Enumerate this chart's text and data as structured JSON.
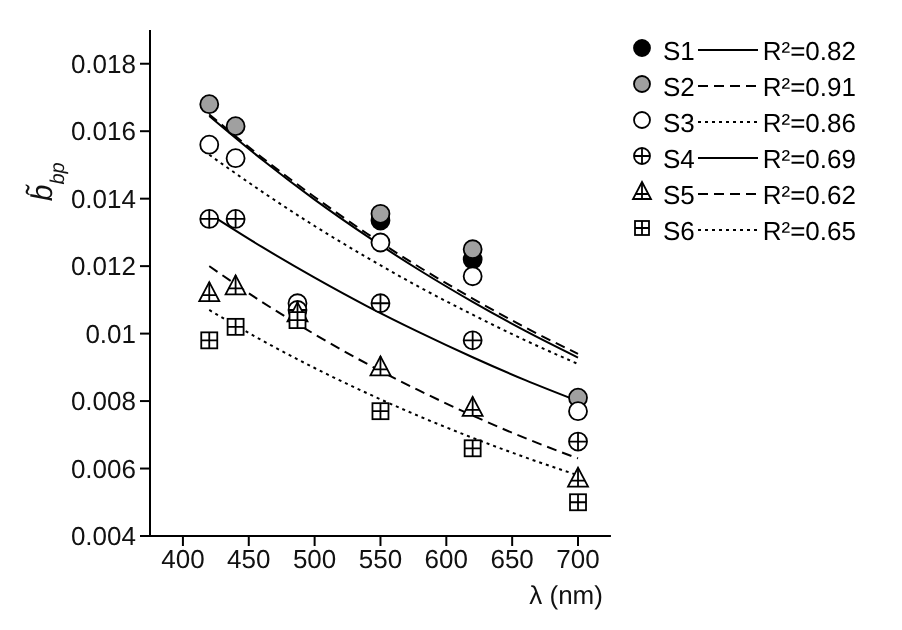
{
  "chart_data": {
    "type": "scatter",
    "xlabel": "λ (nm)",
    "ylabel": "b̃$_{bp}$",
    "xlim": [
      375,
      725
    ],
    "xticks": [
      400,
      450,
      500,
      550,
      600,
      650,
      700
    ],
    "ylim": [
      0.004,
      0.019
    ],
    "yticks": [
      0.004,
      0.006,
      0.008,
      0.01,
      0.012,
      0.014,
      0.016,
      0.018
    ],
    "grid": false,
    "legend": "top right",
    "x": [
      420,
      440,
      487,
      550,
      620,
      700
    ],
    "series": [
      {
        "name": "S1",
        "color": "#000000",
        "marker": "circle",
        "values": [
          null,
          null,
          null,
          0.01335,
          0.0122,
          null
        ]
      },
      {
        "name": "S2",
        "color": "#a0a0a0",
        "marker": "circle",
        "values": [
          0.0168,
          0.01615,
          null,
          0.01355,
          0.0125,
          0.0081
        ]
      },
      {
        "name": "S3",
        "color": "#ffffff",
        "marker": "circle",
        "values": [
          0.0156,
          0.0152,
          0.0109,
          0.0127,
          0.0117,
          0.0077
        ]
      },
      {
        "name": "S4",
        "color": "#ffffff",
        "marker": "circle",
        "values": [
          0.0134,
          0.0134,
          0.0107,
          0.0109,
          0.0098,
          0.0068
        ]
      },
      {
        "name": "S5",
        "color": "#ffffff",
        "marker": "triangle",
        "values": [
          0.0112,
          0.0114,
          0.0106,
          0.009,
          0.0078,
          0.0057
        ]
      },
      {
        "name": "S6",
        "color": "#ffffff",
        "marker": "square",
        "values": [
          0.0098,
          0.0102,
          0.0104,
          0.0077,
          0.0066,
          0.005
        ]
      },
      {
        "name": "R²=0.82",
        "type": "line",
        "color": "#000000",
        "line_style": "solid",
        "marker": "none",
        "x": [
          420,
          460,
          500,
          540,
          580,
          620,
          660,
          700
        ],
        "values": [
          0.01645,
          0.01516,
          0.01397,
          0.01288,
          0.01187,
          0.01094,
          0.01008,
          0.00929
        ]
      },
      {
        "name": "R²=0.91",
        "type": "line",
        "color": "#000000",
        "line_style": "dashed",
        "marker": "none",
        "x": [
          420,
          460,
          500,
          540,
          580,
          620,
          660,
          700
        ],
        "values": [
          0.0165,
          0.01522,
          0.01405,
          0.01296,
          0.01196,
          0.01104,
          0.01018,
          0.0094
        ]
      },
      {
        "name": "R²=0.86",
        "type": "line",
        "color": "#000000",
        "line_style": "dotted",
        "marker": "none",
        "x": [
          420,
          460,
          500,
          540,
          580,
          620,
          660,
          700
        ],
        "values": [
          0.0153,
          0.01421,
          0.01319,
          0.01225,
          0.01137,
          0.01056,
          0.0098,
          0.0091
        ]
      },
      {
        "name": "R²=0.69",
        "type": "line",
        "color": "#000000",
        "line_style": "solid",
        "marker": "none",
        "x": [
          420,
          460,
          500,
          540,
          580,
          620,
          660,
          700
        ],
        "values": [
          0.01355,
          0.01257,
          0.01166,
          0.01081,
          0.01003,
          0.0093,
          0.00862,
          0.008
        ]
      },
      {
        "name": "R²=0.62",
        "type": "line",
        "color": "#000000",
        "line_style": "dashed",
        "marker": "none",
        "x": [
          420,
          460,
          500,
          540,
          580,
          620,
          660,
          700
        ],
        "values": [
          0.012,
          0.01094,
          0.00998,
          0.0091,
          0.0083,
          0.00757,
          0.0069,
          0.0063
        ]
      },
      {
        "name": "R²=0.65",
        "type": "line",
        "color": "#000000",
        "line_style": "dotted",
        "marker": "none",
        "x": [
          420,
          460,
          500,
          540,
          580,
          620,
          660,
          700
        ],
        "values": [
          0.0107,
          0.0098,
          0.00898,
          0.00823,
          0.00754,
          0.00691,
          0.00633,
          0.0058
        ]
      }
    ]
  }
}
